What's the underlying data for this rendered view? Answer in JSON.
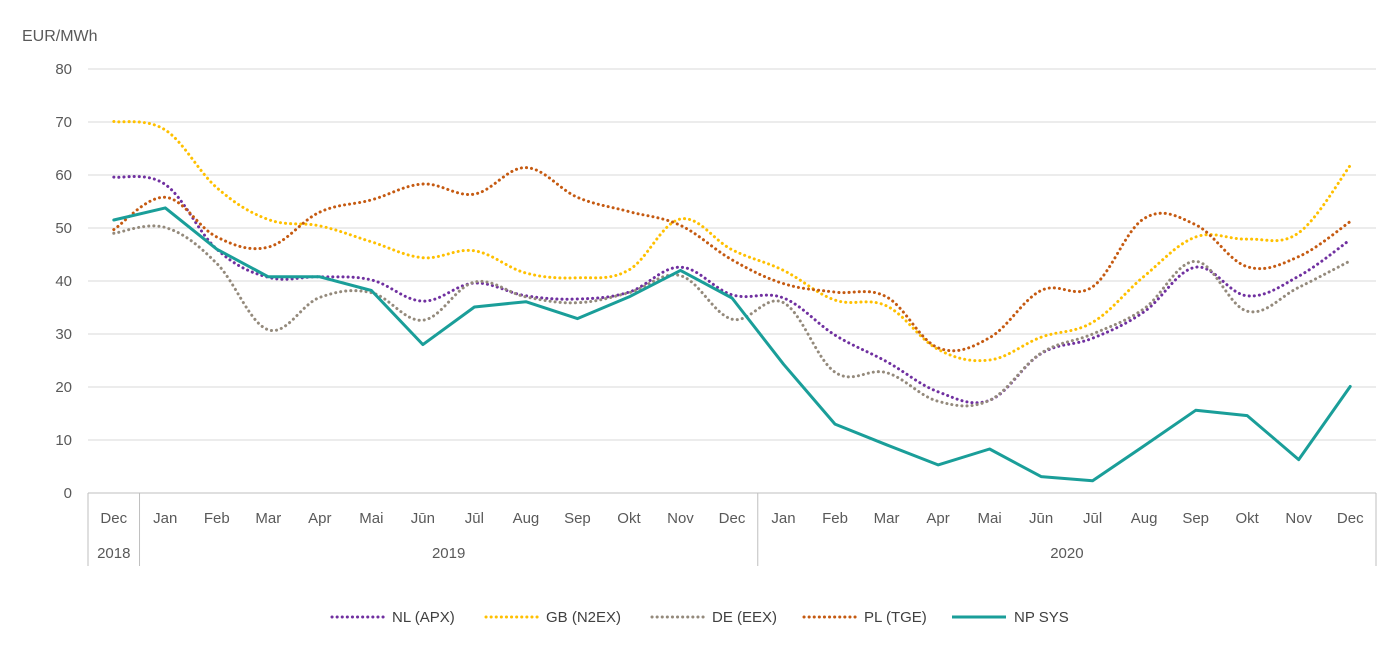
{
  "chart_data": {
    "type": "line",
    "ylabel": "EUR/MWh",
    "ylim": [
      0,
      80
    ],
    "yticks": [
      0,
      10,
      20,
      30,
      40,
      50,
      60,
      70,
      80
    ],
    "grid": true,
    "legend_position": "bottom",
    "categories": [
      "Dec",
      "Jan",
      "Feb",
      "Mar",
      "Apr",
      "Mai",
      "Jūn",
      "Jūl",
      "Aug",
      "Sep",
      "Okt",
      "Nov",
      "Dec",
      "Jan",
      "Feb",
      "Mar",
      "Apr",
      "Mai",
      "Jūn",
      "Jūl",
      "Aug",
      "Sep",
      "Okt",
      "Nov",
      "Dec"
    ],
    "year_groups": [
      {
        "label": "2018",
        "start": 0,
        "end": 0
      },
      {
        "label": "2019",
        "start": 1,
        "end": 12
      },
      {
        "label": "2020",
        "start": 13,
        "end": 24
      }
    ],
    "series": [
      {
        "name": "NL (APX)",
        "color": "#7030A0",
        "style": "dotted",
        "values": [
          59.6,
          58.2,
          46.0,
          40.7,
          40.8,
          40.2,
          36.2,
          39.6,
          37.2,
          36.6,
          37.9,
          42.6,
          37.4,
          36.8,
          29.8,
          24.8,
          19.1,
          17.5,
          26.3,
          29.2,
          34.2,
          42.6,
          37.2,
          40.9,
          47.8
        ]
      },
      {
        "name": "GB (N2EX)",
        "color": "#FFC000",
        "style": "dotted",
        "values": [
          70.1,
          68.5,
          57.6,
          51.6,
          50.4,
          47.4,
          44.4,
          45.7,
          41.5,
          40.6,
          42.1,
          51.7,
          45.9,
          42.0,
          36.4,
          35.3,
          27.1,
          25.1,
          29.4,
          32.2,
          40.9,
          48.3,
          47.9,
          49.1,
          61.8
        ]
      },
      {
        "name": "DE (EEX)",
        "color": "#948A7C",
        "style": "dotted",
        "values": [
          49.0,
          50.1,
          43.3,
          30.8,
          36.9,
          37.8,
          32.6,
          39.8,
          37.0,
          35.9,
          37.8,
          41.0,
          32.8,
          35.9,
          22.8,
          22.7,
          17.3,
          17.5,
          26.4,
          30.0,
          34.8,
          43.7,
          34.3,
          38.8,
          43.8
        ]
      },
      {
        "name": "PL (TGE)",
        "color": "#C55A11",
        "style": "dotted",
        "values": [
          49.7,
          55.8,
          48.3,
          46.4,
          53.0,
          55.3,
          58.3,
          56.4,
          61.4,
          55.8,
          53.1,
          50.5,
          44.0,
          39.5,
          37.9,
          37.0,
          27.4,
          29.3,
          38.2,
          38.9,
          51.8,
          50.6,
          42.7,
          44.6,
          51.2
        ]
      },
      {
        "name": "NP SYS",
        "color": "#1A9E99",
        "style": "solid",
        "values": [
          51.5,
          53.8,
          46.0,
          40.8,
          40.8,
          38.2,
          28.0,
          35.1,
          36.1,
          32.9,
          37.0,
          42.0,
          36.8,
          24.3,
          13.0,
          9.1,
          5.3,
          8.3,
          3.1,
          2.3,
          8.9,
          15.6,
          14.6,
          6.3,
          20.1
        ]
      }
    ]
  }
}
